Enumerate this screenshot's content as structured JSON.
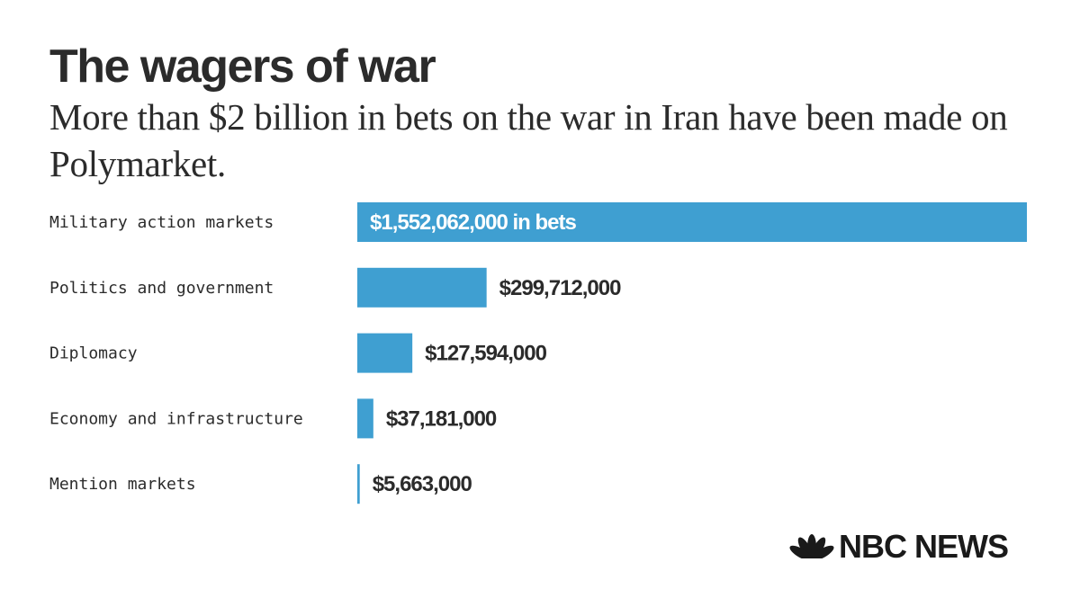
{
  "title": "The wagers of war",
  "subtitle": "More than $2 billion in bets on the war in Iran have been made on Polymarket.",
  "logo_text": "NBC NEWS",
  "colors": {
    "bar": "#3f9fd1",
    "text": "#2b2b2b",
    "bar_label_inside": "#ffffff"
  },
  "chart_data": {
    "type": "bar",
    "orientation": "horizontal",
    "categories": [
      "Military action markets",
      "Politics and government",
      "Diplomacy",
      "Economy and infrastructure",
      "Mention markets"
    ],
    "values": [
      1552062000,
      299712000,
      127594000,
      37181000,
      5663000
    ],
    "data_labels": [
      "$1,552,062,000 in bets",
      "$299,712,000",
      "$127,594,000",
      "$37,181,000",
      "$5,663,000"
    ],
    "xlim": [
      0,
      1552062000
    ],
    "grid": false,
    "legend": "none"
  }
}
